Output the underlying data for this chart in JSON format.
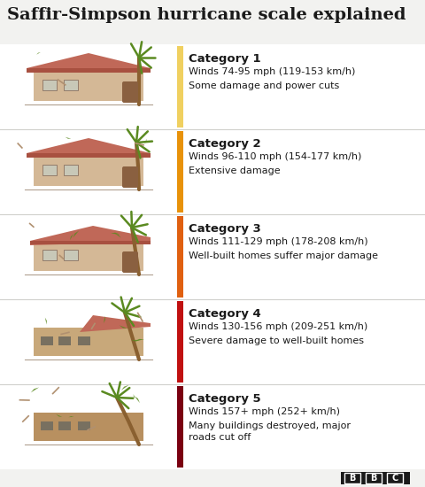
{
  "title": "Saffir-Simpson hurricane scale explained",
  "title_fontsize": 14,
  "bg_color": "#f2f2f0",
  "row_bg": "#ffffff",
  "categories": [
    {
      "number": "Category 1",
      "winds": "Winds 74-95 mph (119-153 km/h)",
      "damage": "Some damage and power cuts",
      "bar_color": "#f0d060",
      "damage_level": 1
    },
    {
      "number": "Category 2",
      "winds": "Winds 96-110 mph (154-177 km/h)",
      "damage": "Extensive damage",
      "bar_color": "#e8920a",
      "damage_level": 2
    },
    {
      "number": "Category 3",
      "winds": "Winds 111-129 mph (178-208 km/h)",
      "damage": "Well-built homes suffer major damage",
      "bar_color": "#e06010",
      "damage_level": 3
    },
    {
      "number": "Category 4",
      "winds": "Winds 130-156 mph (209-251 km/h)",
      "damage": "Severe damage to well-built homes",
      "bar_color": "#c01010",
      "damage_level": 4
    },
    {
      "number": "Category 5",
      "winds": "Winds 157+ mph (252+ km/h)",
      "damage": "Many buildings destroyed, major\nroads cut off",
      "bar_color": "#7a0010",
      "damage_level": 5
    }
  ],
  "wall_color": "#d4b896",
  "roof_color": "#c06858",
  "roof_shadow": "#a85040",
  "door_color": "#8a6040",
  "window_color": "#c8c8b8",
  "window_frame": "#8a7060",
  "tree_trunk": "#8a6030",
  "frond_color": "#5a8a20",
  "debris_color": "#5a8a20",
  "text_color": "#1a1a1a",
  "divider_color": "#d0d0cc",
  "bbc_bg": "#1a1a1a"
}
